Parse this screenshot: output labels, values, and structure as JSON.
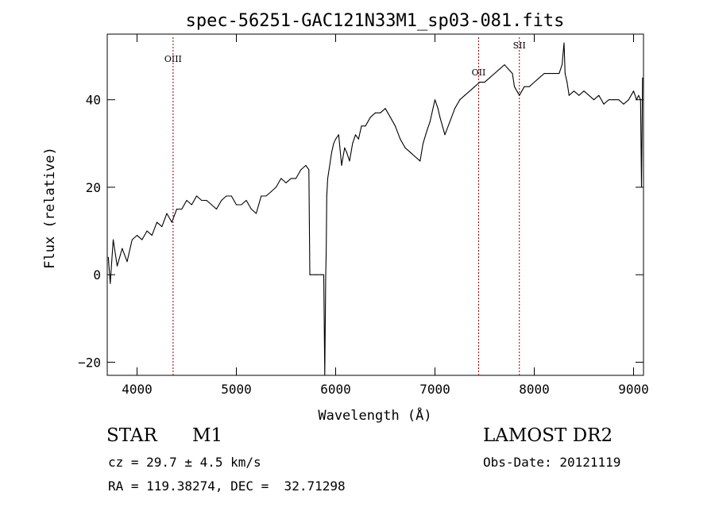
{
  "chart_data": {
    "type": "line",
    "title": "spec-56251-GAC121N33M1_sp03-081.fits",
    "xlabel": "Wavelength (Å)",
    "ylabel": "Flux (relative)",
    "xlim": [
      3700,
      9100
    ],
    "ylim": [
      -23,
      55
    ],
    "xticks": [
      4000,
      5000,
      6000,
      7000,
      8000,
      9000
    ],
    "yticks": [
      -20,
      0,
      20,
      40
    ],
    "grid": false,
    "line_color": "#000000",
    "line_markers": [
      {
        "label": "OIII",
        "x": 4363,
        "color": "#8b0000"
      },
      {
        "label": "OII",
        "x": 7440,
        "color": "#8b0000"
      },
      {
        "label": "SII",
        "x": 7850,
        "color": "#8b0000"
      }
    ],
    "series": [
      {
        "x": [
          3710,
          3730,
          3760,
          3800,
          3850,
          3900,
          3950,
          4000,
          4050,
          4100,
          4150,
          4200,
          4250,
          4300,
          4350,
          4400,
          4450,
          4500,
          4550,
          4600,
          4650,
          4700,
          4750,
          4800,
          4850,
          4900,
          4950,
          5000,
          5050,
          5100,
          5150,
          5200,
          5250,
          5300,
          5350,
          5400,
          5450,
          5500,
          5550,
          5600,
          5650,
          5700,
          5730,
          5740,
          5750,
          5800,
          5850,
          5860,
          5880,
          5890,
          5900,
          5905,
          5910,
          5920,
          5940,
          5960,
          5980,
          6000,
          6030,
          6060,
          6090,
          6110,
          6140,
          6170,
          6200,
          6230,
          6260,
          6300,
          6350,
          6400,
          6450,
          6500,
          6550,
          6600,
          6650,
          6700,
          6750,
          6800,
          6850,
          6880,
          6920,
          6950,
          6980,
          7000,
          7030,
          7050,
          7100,
          7150,
          7200,
          7250,
          7300,
          7350,
          7400,
          7450,
          7500,
          7550,
          7600,
          7650,
          7700,
          7740,
          7780,
          7800,
          7850,
          7900,
          7950,
          8000,
          8050,
          8100,
          8150,
          8200,
          8250,
          8280,
          8300,
          8310,
          8330,
          8350,
          8400,
          8450,
          8500,
          8550,
          8600,
          8650,
          8700,
          8750,
          8800,
          8850,
          8900,
          8950,
          9000,
          9030,
          9050,
          9070,
          9080,
          9090
        ],
        "values": [
          4,
          -2,
          8,
          2,
          6,
          3,
          8,
          9,
          8,
          10,
          9,
          12,
          11,
          14,
          12,
          15,
          15,
          17,
          16,
          18,
          17,
          17,
          16,
          15,
          17,
          18,
          18,
          16,
          16,
          17,
          15,
          14,
          18,
          18,
          19,
          20,
          22,
          21,
          22,
          22,
          24,
          25,
          24,
          0,
          0,
          0,
          0,
          0,
          0,
          -23,
          0,
          5,
          18,
          22,
          25,
          28,
          30,
          31,
          32,
          25,
          29,
          28,
          26,
          30,
          32,
          31,
          34,
          34,
          36,
          37,
          37,
          38,
          36,
          34,
          31,
          29,
          28,
          27,
          26,
          30,
          33,
          35,
          38,
          40,
          38,
          36,
          32,
          35,
          38,
          40,
          41,
          42,
          43,
          44,
          44,
          45,
          46,
          47,
          48,
          47,
          46,
          43,
          41,
          43,
          43,
          44,
          45,
          46,
          46,
          46,
          46,
          48,
          53,
          46,
          44,
          41,
          42,
          41,
          42,
          41,
          40,
          41,
          39,
          40,
          40,
          40,
          39,
          40,
          42,
          40,
          41,
          40,
          20,
          45
        ]
      }
    ]
  },
  "info": {
    "obj_class": "STAR",
    "obj_subclass": "M1",
    "survey": "LAMOST DR2",
    "cz": "cz = 29.7 ± 4.5 km/s",
    "obs_date": "Obs-Date: 20121119",
    "radec": "RA = 119.38274, DEC =  32.71298"
  }
}
